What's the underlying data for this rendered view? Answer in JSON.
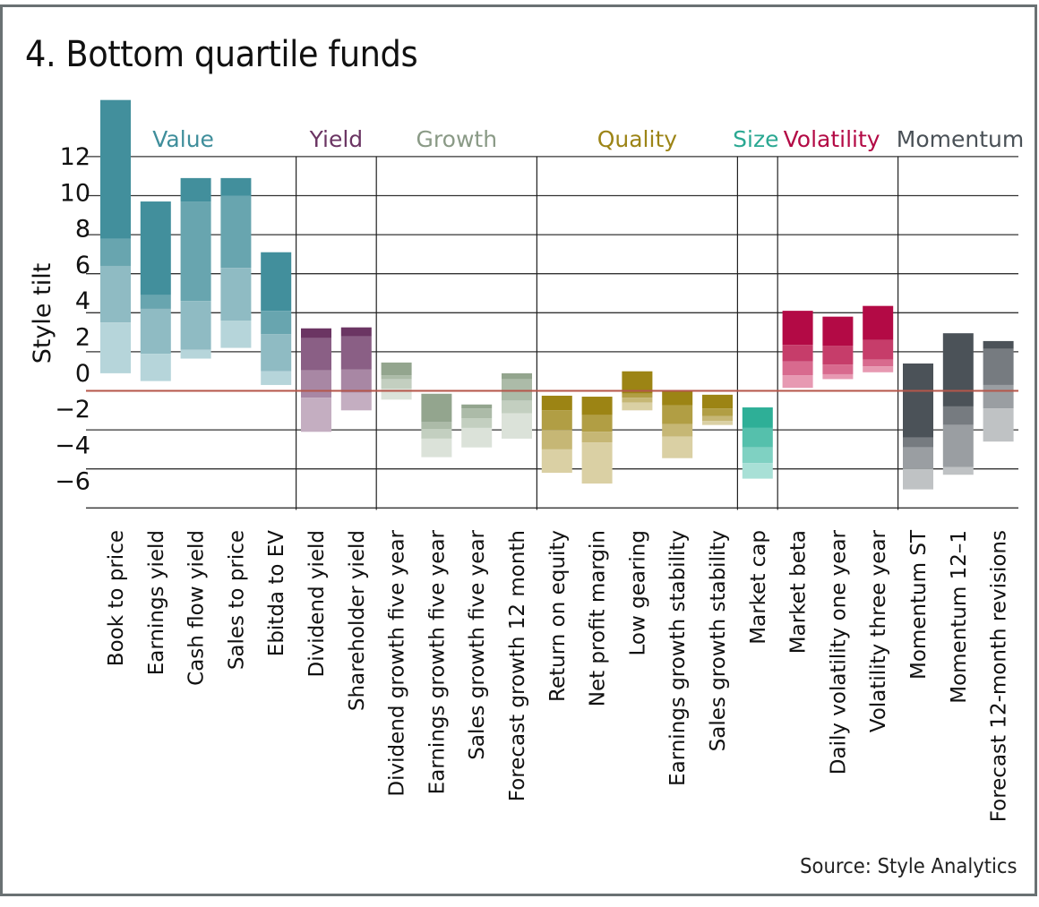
{
  "chart_data": {
    "type": "bar",
    "subtype": "stacked-range",
    "title": "4. Bottom quartile funds",
    "source": "Source: Style Analytics",
    "xlabel": "",
    "ylabel": "Style tilt",
    "ylim": [
      -6.2,
      15
    ],
    "yticks": [
      12,
      10,
      8,
      6,
      4,
      2,
      0,
      -2,
      -4,
      -6
    ],
    "ytick_labels": [
      "12",
      "10",
      "8",
      "6",
      "4",
      "2",
      "0",
      "−2",
      "−4",
      "−6"
    ],
    "grid": true,
    "zero_line_color": "#b5564a",
    "groups": [
      {
        "name": "Value",
        "color": "#3f8e9b",
        "shades": [
          "#428f9c",
          "#68a5af",
          "#8fbbc3",
          "#b6d5da"
        ],
        "start": 0,
        "end": 4
      },
      {
        "name": "Yield",
        "color": "#6b3563",
        "shades": [
          "#6b3563",
          "#8a5f85",
          "#a887a4",
          "#c4aec1"
        ],
        "start": 5,
        "end": 6
      },
      {
        "name": "Growth",
        "color": "#8a9a86",
        "shades": [
          "#93a58e",
          "#acbba8",
          "#c3cfc0",
          "#dbe2d9"
        ],
        "start": 7,
        "end": 10
      },
      {
        "name": "Quality",
        "color": "#9c8416",
        "shades": [
          "#9c8414",
          "#b19e44",
          "#c6b775",
          "#dad0a4"
        ],
        "start": 11,
        "end": 15
      },
      {
        "name": "Size",
        "color": "#2aa892",
        "shades": [
          "#2eaf97",
          "#55c0ac",
          "#7fd1c2",
          "#a8e0d6"
        ],
        "start": 16,
        "end": 16
      },
      {
        "name": "Volatility",
        "color": "#b30a45",
        "shades": [
          "#b30a45",
          "#c63d6a",
          "#d86a8e",
          "#e799b2"
        ],
        "start": 17,
        "end": 19
      },
      {
        "name": "Momentum",
        "color": "#4a5157",
        "shades": [
          "#4b5258",
          "#767b80",
          "#9a9ea2",
          "#bfc2c4"
        ],
        "start": 20,
        "end": 22
      }
    ],
    "categories": [
      "Book to price",
      "Earnings yield",
      "Cash flow yield",
      "Sales to price",
      "Ebitda to EV",
      "Dividend yield",
      "Shareholder yield",
      "Dividend growth five year",
      "Earnings growth five year",
      "Sales growth five year",
      "Forecast growth 12 month",
      "Return on equity",
      "Net profit margin",
      "Low gearing",
      "Earnings growth stability",
      "Sales growth stability",
      "Market cap",
      "Market beta",
      "Daily volatility one year",
      "Volatility three year",
      "Momentum ST",
      "Momentum 12–1",
      "Forecast 12-month revisions"
    ],
    "series_note": "Each bar is a stacked range; boundaries listed top to bottom in style-tilt units (darkest segment first).",
    "series": [
      {
        "name": "Book to price",
        "boundaries": [
          14.9,
          7.8,
          6.4,
          3.5,
          0.9
        ]
      },
      {
        "name": "Earnings yield",
        "boundaries": [
          9.7,
          4.9,
          4.2,
          1.9,
          0.5
        ]
      },
      {
        "name": "Cash flow yield",
        "boundaries": [
          10.9,
          9.7,
          4.6,
          2.1,
          1.65
        ]
      },
      {
        "name": "Sales to price",
        "boundaries": [
          10.9,
          10.0,
          6.3,
          3.6,
          2.2
        ]
      },
      {
        "name": "Ebitda to EV",
        "boundaries": [
          7.1,
          4.1,
          2.9,
          1.0,
          0.3
        ]
      },
      {
        "name": "Dividend yield",
        "boundaries": [
          3.2,
          2.7,
          1.05,
          -0.35,
          -2.1
        ]
      },
      {
        "name": "Shareholder yield",
        "boundaries": [
          3.25,
          2.8,
          1.1,
          -0.1,
          -1.0
        ]
      },
      {
        "name": "Dividend growth five year",
        "boundaries": [
          1.45,
          0.8,
          0.6,
          0.1,
          -0.45
        ]
      },
      {
        "name": "Earnings growth five year",
        "boundaries": [
          -0.15,
          -1.6,
          -1.95,
          -2.45,
          -3.4
        ]
      },
      {
        "name": "Sales growth five year",
        "boundaries": [
          -0.7,
          -0.9,
          -1.4,
          -1.9,
          -2.9
        ]
      },
      {
        "name": "Forecast growth 12 month",
        "boundaries": [
          0.9,
          0.6,
          -0.5,
          -1.15,
          -2.45
        ]
      },
      {
        "name": "Return on equity",
        "boundaries": [
          -0.25,
          -1.0,
          -2.0,
          -3.0,
          -4.2
        ]
      },
      {
        "name": "Net profit margin",
        "boundaries": [
          -0.3,
          -1.25,
          -2.1,
          -2.65,
          -4.75
        ]
      },
      {
        "name": "Low gearing",
        "boundaries": [
          1.0,
          -0.15,
          -0.35,
          -0.6,
          -1.0
        ]
      },
      {
        "name": "Earnings growth stability",
        "boundaries": [
          0.0,
          -0.75,
          -1.7,
          -2.35,
          -3.45
        ]
      },
      {
        "name": "Sales growth stability",
        "boundaries": [
          -0.2,
          -0.9,
          -1.3,
          -1.55,
          -1.75
        ]
      },
      {
        "name": "Market cap",
        "boundaries": [
          -0.85,
          -1.9,
          -2.9,
          -3.7,
          -4.5
        ]
      },
      {
        "name": "Market beta",
        "boundaries": [
          4.1,
          2.35,
          1.5,
          0.8,
          0.15
        ]
      },
      {
        "name": "Daily volatility one year",
        "boundaries": [
          3.8,
          2.3,
          1.35,
          0.85,
          0.6
        ]
      },
      {
        "name": "Volatility three year",
        "boundaries": [
          4.35,
          2.6,
          1.6,
          1.25,
          0.95
        ]
      },
      {
        "name": "Momentum ST",
        "boundaries": [
          1.4,
          -2.4,
          -2.9,
          -4.0,
          -5.05
        ]
      },
      {
        "name": "Momentum 12–1",
        "boundaries": [
          2.95,
          -0.8,
          -1.75,
          -3.9,
          -4.3
        ]
      },
      {
        "name": "Forecast 12-month revisions",
        "boundaries": [
          2.55,
          2.15,
          0.3,
          -0.9,
          -2.6
        ]
      }
    ],
    "legend": "none; group names shown above columns"
  }
}
